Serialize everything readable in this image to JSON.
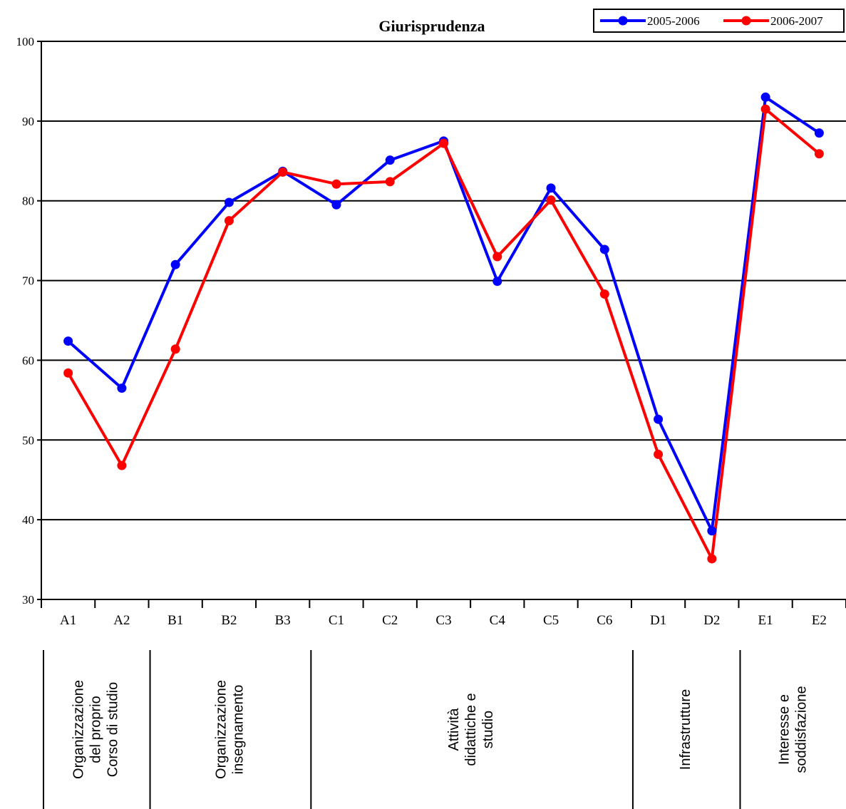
{
  "chart_data": {
    "type": "line",
    "title": "Giurisprudenza",
    "xlabel": "",
    "ylabel": "",
    "ylim": [
      30,
      100
    ],
    "yticks": [
      30,
      40,
      50,
      60,
      70,
      80,
      90,
      100
    ],
    "grid": true,
    "legend_position": "top-right",
    "categories": [
      "A1",
      "A2",
      "B1",
      "B2",
      "B3",
      "C1",
      "C2",
      "C3",
      "C4",
      "C5",
      "C6",
      "D1",
      "D2",
      "E1",
      "E2"
    ],
    "series": [
      {
        "name": "2005-2006",
        "color": "#0000ff",
        "values": [
          62.4,
          56.5,
          72.0,
          79.8,
          83.7,
          79.5,
          85.1,
          87.5,
          69.9,
          81.6,
          73.9,
          52.6,
          38.6,
          93.0,
          88.5
        ]
      },
      {
        "name": "2006-2007",
        "color": "#ff0000",
        "values": [
          58.4,
          46.8,
          61.4,
          77.5,
          83.6,
          82.1,
          82.4,
          87.2,
          73.0,
          80.1,
          68.3,
          48.2,
          35.1,
          91.5,
          85.9
        ]
      }
    ],
    "groups": [
      {
        "label": "Organizzazione del proprio Corso di studio",
        "lines": [
          "Organizzazione",
          "del proprio",
          "Corso di studio"
        ],
        "categories": [
          "A1",
          "A2"
        ]
      },
      {
        "label": "Organizzazione insegnamento",
        "lines": [
          "Organizzazione",
          "insegnamento"
        ],
        "categories": [
          "B1",
          "B2",
          "B3"
        ]
      },
      {
        "label": "Attività didattiche e studio",
        "lines": [
          "Attività",
          "didattiche e",
          "studio"
        ],
        "categories": [
          "C1",
          "C2",
          "C3",
          "C4",
          "C5",
          "C6"
        ]
      },
      {
        "label": "Infrastrutture",
        "lines": [
          "Infrastrutture"
        ],
        "categories": [
          "D1",
          "D2"
        ]
      },
      {
        "label": "Interesse e soddisfazione",
        "lines": [
          "Interesse e",
          "soddisfazione"
        ],
        "categories": [
          "E1",
          "E2"
        ]
      }
    ]
  }
}
